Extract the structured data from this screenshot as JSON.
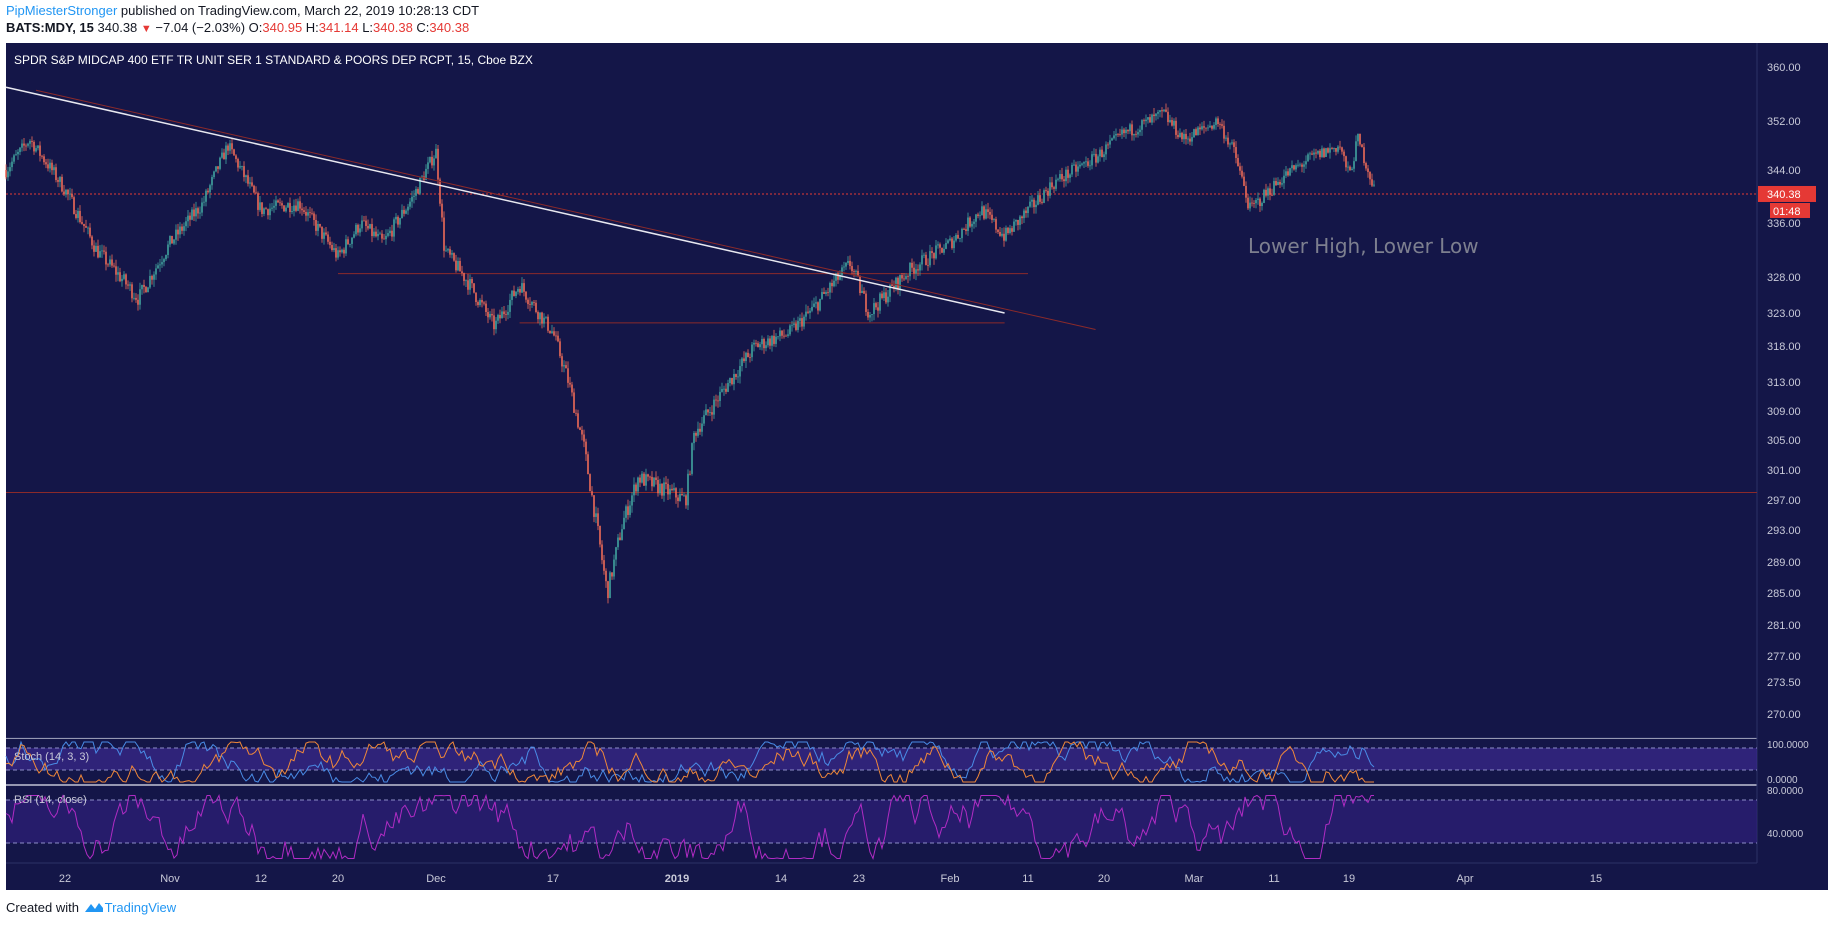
{
  "header": {
    "author": "PipMiesterStronger",
    "published_text": " published on TradingView.com, March 22, 2019 10:28:13 CDT",
    "symbol": "BATS:MDY, 15",
    "last": "340.38",
    "change": "−7.04 (−2.03%)",
    "o_label": "O:",
    "o_value": "340.95",
    "h_label": "H:",
    "h_value": "341.14",
    "l_label": "L:",
    "l_value": "340.38",
    "c_label": "C:",
    "c_value": "340.38"
  },
  "footer": {
    "created_with": "Created with",
    "brand": "TradingView"
  },
  "colors": {
    "background": "#141648",
    "up": "#42a5a0",
    "down": "#ef6b57",
    "trendline": "#e8e8f0",
    "level_line": "#8b2a2a",
    "price_tag": "#e53935",
    "stoch_k": "#4a8ce6",
    "stoch_d": "#f0883a",
    "stoch_band": "#3a2a8f",
    "rsi_line": "#b02cc4",
    "rsi_band": "#2e1f7a"
  },
  "chart_data": {
    "type": "candlestick",
    "title": "SPDR S&P MIDCAP 400 ETF TR UNIT SER 1 STANDARD & POORS DEP RCPT, 15, Cboe BZX",
    "annotation": "Lower High, Lower Low",
    "y_ticks": [
      "360.00",
      "352.00",
      "344.00",
      "336.00",
      "328.00",
      "323.00",
      "318.00",
      "313.00",
      "309.00",
      "305.00",
      "301.00",
      "297.00",
      "293.00",
      "289.00",
      "285.00",
      "281.00",
      "277.00",
      "273.50",
      "270.00"
    ],
    "x_ticks": [
      "22",
      "Nov",
      "12",
      "20",
      "Dec",
      "17",
      "2019",
      "14",
      "23",
      "Feb",
      "11",
      "20",
      "Mar",
      "11",
      "19",
      "Apr",
      "15"
    ],
    "bold_x_tick": "2019",
    "last_price_label": "340.38",
    "countdown_label": "01:48",
    "price_path": [
      [
        "Oct 17",
        344
      ],
      [
        "Oct 19",
        349
      ],
      [
        "Oct 22",
        341
      ],
      [
        "Oct 25",
        332
      ],
      [
        "Oct 29",
        325
      ],
      [
        "Nov 1",
        333
      ],
      [
        "Nov 5",
        339
      ],
      [
        "Nov 8",
        348
      ],
      [
        "Nov 12",
        338
      ],
      [
        "Nov 16",
        339
      ],
      [
        "Nov 20",
        331
      ],
      [
        "Nov 23",
        336
      ],
      [
        "Nov 26",
        333
      ],
      [
        "Nov 30",
        340
      ],
      [
        "Dec 3",
        347
      ],
      [
        "Dec 4",
        332
      ],
      [
        "Dec 7",
        327
      ],
      [
        "Dec 10",
        321
      ],
      [
        "Dec 13",
        327
      ],
      [
        "Dec 17",
        320
      ],
      [
        "Dec 19",
        313
      ],
      [
        "Dec 21",
        304
      ],
      [
        "Dec 24",
        285
      ],
      [
        "Dec 26",
        294
      ],
      [
        "Dec 28",
        300
      ],
      [
        "Jan 3",
        297
      ],
      [
        "Jan 4",
        306
      ],
      [
        "Jan 8",
        313
      ],
      [
        "Jan 11",
        318
      ],
      [
        "Jan 15",
        320
      ],
      [
        "Jan 18",
        324
      ],
      [
        "Jan 22",
        330
      ],
      [
        "Jan 24",
        323
      ],
      [
        "Jan 28",
        329
      ],
      [
        "Feb 1",
        333
      ],
      [
        "Feb 5",
        338
      ],
      [
        "Feb 8",
        334
      ],
      [
        "Feb 14",
        342
      ],
      [
        "Feb 19",
        346
      ],
      [
        "Feb 22",
        350
      ],
      [
        "Feb 26",
        353
      ],
      [
        "Feb 28",
        349
      ],
      [
        "Mar 4",
        352
      ],
      [
        "Mar 6",
        347
      ],
      [
        "Mar 8",
        338
      ],
      [
        "Mar 12",
        343
      ],
      [
        "Mar 15",
        346
      ],
      [
        "Mar 18",
        348
      ],
      [
        "Mar 19",
        343
      ],
      [
        "Mar 20",
        349
      ],
      [
        "Mar 22",
        340.38
      ]
    ],
    "trendline": {
      "from": [
        "Oct 17",
        363
      ],
      "to": [
        "Feb 8",
        323
      ]
    },
    "horizontal_levels": [
      {
        "price": 340.38,
        "style": "dotted"
      },
      {
        "price": 328.5,
        "from": "Nov 20",
        "to": "Feb 11"
      },
      {
        "price": 321.5,
        "from": "Dec 13",
        "to": "Feb 8"
      },
      {
        "price": 298.0,
        "from": "Oct 17",
        "to": "Apr 30"
      }
    ],
    "indicators": [
      {
        "name": "Stoch (14, 3, 3)",
        "y_ticks": [
          "100.0000",
          "0.0000"
        ],
        "bands": [
          80,
          20
        ]
      },
      {
        "name": "RSI (14, close)",
        "y_ticks": [
          "80.0000",
          "40.0000"
        ],
        "bands": [
          70,
          30
        ]
      }
    ]
  }
}
